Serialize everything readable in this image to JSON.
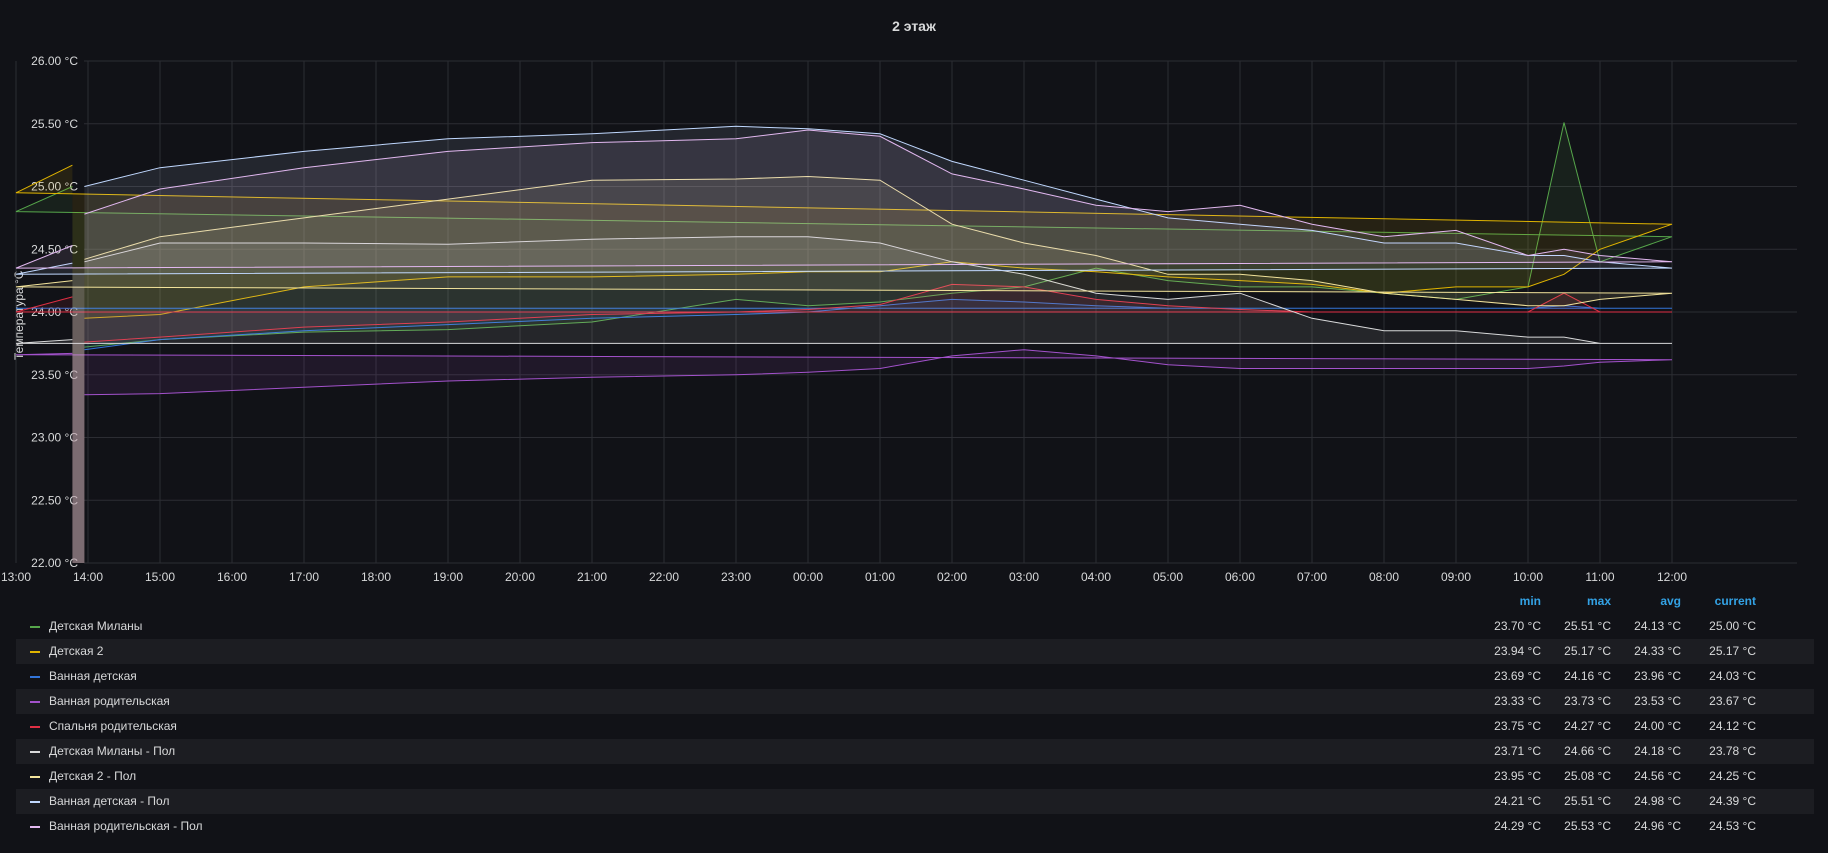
{
  "panel": {
    "title": "2 этаж"
  },
  "chart_data": {
    "type": "area",
    "title": "2 этаж",
    "ylabel": "Температура °C",
    "ylim": [
      22.0,
      26.0
    ],
    "yticks": [
      "22.00 °C",
      "22.50 °C",
      "23.00 °C",
      "23.50 °C",
      "24.00 °C",
      "24.50 °C",
      "25.00 °C",
      "25.50 °C",
      "26.00 °C"
    ],
    "xticks": [
      "14:00",
      "15:00",
      "16:00",
      "17:00",
      "18:00",
      "19:00",
      "20:00",
      "21:00",
      "22:00",
      "23:00",
      "00:00",
      "01:00",
      "02:00",
      "03:00",
      "04:00",
      "05:00",
      "06:00",
      "07:00",
      "08:00",
      "09:00",
      "10:00",
      "11:00",
      "12:00",
      "13:00"
    ],
    "x": [
      "13:57",
      "15:00",
      "17:00",
      "19:00",
      "21:00",
      "23:00",
      "00:00",
      "01:00",
      "02:00",
      "03:00",
      "04:00",
      "05:00",
      "06:00",
      "07:00",
      "08:00",
      "09:00",
      "10:00",
      "10:30",
      "11:00",
      "12:00",
      "13:00",
      "13:47"
    ],
    "grid": true,
    "legend_position": "bottom",
    "legend_columns": [
      "min",
      "max",
      "avg",
      "current"
    ],
    "series": [
      {
        "name": "Детская Миланы",
        "color": "#56a64b",
        "values": [
          23.72,
          23.78,
          23.84,
          23.86,
          23.92,
          24.1,
          24.05,
          24.08,
          24.15,
          24.2,
          24.35,
          24.25,
          24.2,
          24.2,
          24.15,
          24.1,
          24.2,
          25.51,
          24.4,
          24.6,
          24.8,
          25.0
        ],
        "stats": {
          "min": "23.70 °C",
          "max": "25.51 °C",
          "avg": "24.13 °C",
          "current": "25.00 °C"
        }
      },
      {
        "name": "Детская 2",
        "color": "#e0b400",
        "values": [
          23.95,
          23.98,
          24.2,
          24.28,
          24.28,
          24.3,
          24.32,
          24.32,
          24.4,
          24.35,
          24.32,
          24.28,
          24.25,
          24.22,
          24.15,
          24.2,
          24.2,
          24.3,
          24.5,
          24.7,
          24.95,
          25.17
        ],
        "stats": {
          "min": "23.94 °C",
          "max": "25.17 °C",
          "avg": "24.33 °C",
          "current": "25.17 °C"
        }
      },
      {
        "name": "Ванная детская",
        "color": "#3274d9",
        "values": [
          23.7,
          23.78,
          23.85,
          23.9,
          23.95,
          23.98,
          24.0,
          24.05,
          24.1,
          24.08,
          24.05,
          24.03,
          24.03,
          24.03,
          24.03,
          24.03,
          24.03,
          24.05,
          24.03,
          24.03,
          24.03,
          24.03
        ],
        "stats": {
          "min": "23.69 °C",
          "max": "24.16 °C",
          "avg": "23.96 °C",
          "current": "24.03 °C"
        }
      },
      {
        "name": "Ванная родительская",
        "color": "#a352cc",
        "values": [
          23.34,
          23.35,
          23.4,
          23.45,
          23.48,
          23.5,
          23.52,
          23.55,
          23.65,
          23.7,
          23.65,
          23.58,
          23.55,
          23.55,
          23.55,
          23.55,
          23.55,
          23.57,
          23.6,
          23.62,
          23.66,
          23.67
        ],
        "stats": {
          "min": "23.33 °C",
          "max": "23.73 °C",
          "avg": "23.53 °C",
          "current": "23.67 °C"
        }
      },
      {
        "name": "Спальня родительская",
        "color": "#e02f44",
        "values": [
          23.76,
          23.8,
          23.88,
          23.92,
          23.98,
          24.0,
          24.02,
          24.06,
          24.22,
          24.2,
          24.1,
          24.05,
          24.02,
          24.0,
          24.0,
          24.0,
          24.0,
          24.15,
          24.0,
          24.0,
          24.0,
          24.12
        ],
        "stats": {
          "min": "23.75 °C",
          "max": "24.27 °C",
          "avg": "24.00 °C",
          "current": "24.12 °C"
        }
      },
      {
        "name": "Детская Миланы - Пол",
        "color": "#d8d9da",
        "values": [
          24.4,
          24.55,
          24.55,
          24.54,
          24.58,
          24.6,
          24.6,
          24.55,
          24.4,
          24.3,
          24.15,
          24.1,
          24.15,
          23.95,
          23.85,
          23.85,
          23.8,
          23.8,
          23.75,
          23.75,
          23.75,
          23.78
        ],
        "stats": {
          "min": "23.71 °C",
          "max": "24.66 °C",
          "avg": "24.18 °C",
          "current": "23.78 °C"
        }
      },
      {
        "name": "Детская 2 - Пол",
        "color": "#f2e39b",
        "values": [
          24.42,
          24.6,
          24.75,
          24.9,
          25.05,
          25.06,
          25.08,
          25.05,
          24.7,
          24.55,
          24.45,
          24.3,
          24.3,
          24.25,
          24.15,
          24.1,
          24.05,
          24.05,
          24.1,
          24.15,
          24.2,
          24.25
        ],
        "stats": {
          "min": "23.95 °C",
          "max": "25.08 °C",
          "avg": "24.56 °C",
          "current": "24.25 °C"
        }
      },
      {
        "name": "Ванная детская - Пол",
        "color": "#c0d8ff",
        "values": [
          25.0,
          25.15,
          25.28,
          25.38,
          25.42,
          25.48,
          25.46,
          25.42,
          25.2,
          25.05,
          24.9,
          24.75,
          24.7,
          24.65,
          24.55,
          24.55,
          24.45,
          24.45,
          24.4,
          24.35,
          24.3,
          24.39
        ],
        "stats": {
          "min": "24.21 °C",
          "max": "25.51 °C",
          "avg": "24.98 °C",
          "current": "24.39 °C"
        }
      },
      {
        "name": "Ванная родительская - Пол",
        "color": "#e2b8f0",
        "values": [
          24.78,
          24.98,
          25.15,
          25.28,
          25.35,
          25.38,
          25.45,
          25.4,
          25.1,
          24.98,
          24.85,
          24.8,
          24.85,
          24.7,
          24.6,
          24.65,
          24.45,
          24.5,
          24.45,
          24.4,
          24.35,
          24.53
        ],
        "stats": {
          "min": "24.29 °C",
          "max": "25.53 °C",
          "avg": "24.96 °C",
          "current": "24.53 °C"
        }
      }
    ]
  },
  "legend": {
    "header": {
      "min": "min",
      "max": "max",
      "avg": "avg",
      "current": "current"
    }
  }
}
